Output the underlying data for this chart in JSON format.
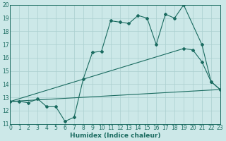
{
  "xlabel": "Humidex (Indice chaleur)",
  "bg_color": "#cce8e8",
  "line_color": "#1a6b60",
  "grid_color": "#aacfcf",
  "xmin": 0,
  "xmax": 23,
  "ymin": 11,
  "ymax": 20,
  "line1_x": [
    0,
    1,
    2,
    3,
    4,
    5,
    6,
    7,
    8,
    9,
    10,
    11,
    12,
    13,
    14,
    15,
    16,
    17,
    18,
    19,
    21,
    22,
    23
  ],
  "line1_y": [
    12.7,
    12.7,
    12.6,
    12.9,
    12.3,
    12.3,
    11.2,
    11.5,
    14.4,
    16.4,
    16.5,
    18.8,
    18.7,
    18.6,
    19.2,
    19.0,
    17.0,
    19.3,
    19.0,
    20.0,
    17.0,
    14.2,
    13.6
  ],
  "line2_x": [
    0,
    19,
    20,
    21,
    22,
    23
  ],
  "line2_y": [
    12.7,
    16.7,
    16.6,
    15.7,
    14.2,
    13.6
  ],
  "line3_x": [
    0,
    23
  ],
  "line3_y": [
    12.7,
    13.6
  ],
  "yticks": [
    11,
    12,
    13,
    14,
    15,
    16,
    17,
    18,
    19,
    20
  ],
  "xticks": [
    0,
    1,
    2,
    3,
    4,
    5,
    6,
    7,
    8,
    9,
    10,
    11,
    12,
    13,
    14,
    15,
    16,
    17,
    18,
    19,
    20,
    21,
    22,
    23
  ]
}
